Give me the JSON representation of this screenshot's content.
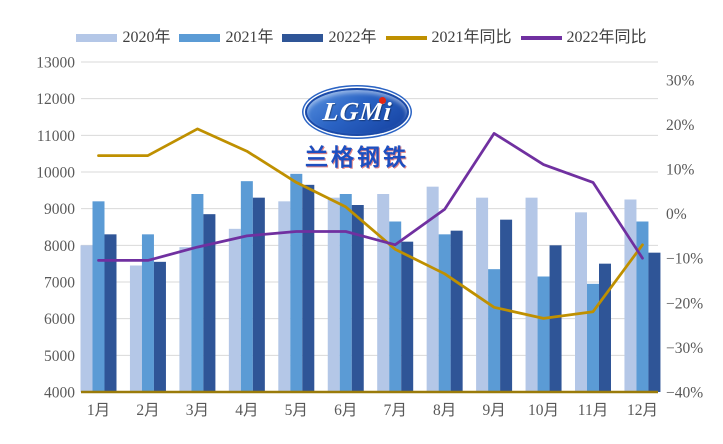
{
  "watermark": {
    "logo_text": "LGMi",
    "cn_text": "兰格钢铁"
  },
  "colors": {
    "background": "#ffffff",
    "gridline": "#d9d9d9",
    "x_axis_line": "#9a7b0a",
    "axis_tick_text": "#595959",
    "legend_text": "#3f3f3f",
    "bar_2020": "#b4c7e7",
    "bar_2021": "#5b9bd5",
    "bar_2022": "#2f5597",
    "line_2021_yoy": "#bf9000",
    "line_2022_yoy": "#7030a0"
  },
  "chart_data": {
    "type": "combo-bar-line",
    "title": "",
    "categories": [
      "1月",
      "2月",
      "3月",
      "4月",
      "5月",
      "6月",
      "7月",
      "8月",
      "9月",
      "10月",
      "11月",
      "12月"
    ],
    "series": [
      {
        "name": "2020年",
        "type": "bar",
        "axis": "left",
        "color": "#b4c7e7",
        "values": [
          8000,
          7450,
          7950,
          8450,
          9200,
          9300,
          9400,
          9600,
          9300,
          9300,
          8900,
          9250
        ]
      },
      {
        "name": "2021年",
        "type": "bar",
        "axis": "left",
        "color": "#5b9bd5",
        "values": [
          9200,
          8300,
          9400,
          9750,
          9950,
          9400,
          8650,
          8300,
          7350,
          7150,
          6950,
          8650
        ]
      },
      {
        "name": "2022年",
        "type": "bar",
        "axis": "left",
        "color": "#2f5597",
        "values": [
          8300,
          7550,
          8850,
          9300,
          9650,
          9100,
          8100,
          8400,
          8700,
          8000,
          7500,
          7800
        ]
      },
      {
        "name": "2021年同比",
        "type": "line",
        "axis": "right",
        "color": "#bf9000",
        "values": [
          13,
          13,
          19,
          14,
          7,
          1.5,
          -8,
          -13.5,
          -21,
          -23.5,
          -22,
          -7
        ]
      },
      {
        "name": "2022年同比",
        "type": "line",
        "axis": "right",
        "color": "#7030a0",
        "values": [
          -10.5,
          -10.5,
          -7.5,
          -5,
          -4,
          -4,
          -7,
          1,
          18,
          11,
          7,
          -10
        ]
      }
    ],
    "left_axis": {
      "min": 4000,
      "max": 13000,
      "step": 1000,
      "tick_values": [
        13000,
        12000,
        11000,
        10000,
        9000,
        8000,
        7000,
        6000,
        5000,
        4000
      ],
      "tick_labels": [
        "13000",
        "12000",
        "11000",
        "10000",
        "9000",
        "8000",
        "7000",
        "6000",
        "5000",
        "4000"
      ]
    },
    "right_axis": {
      "tick_values": [
        30,
        20,
        10,
        0,
        -10,
        -20,
        -30,
        -40
      ],
      "tick_labels": [
        "30%",
        "20%",
        "10%",
        "0%",
        "−10%",
        "−20%",
        "−30%",
        "−40%"
      ],
      "render_min": -40,
      "render_max": 34
    },
    "grid": true,
    "legend_position": "top"
  }
}
